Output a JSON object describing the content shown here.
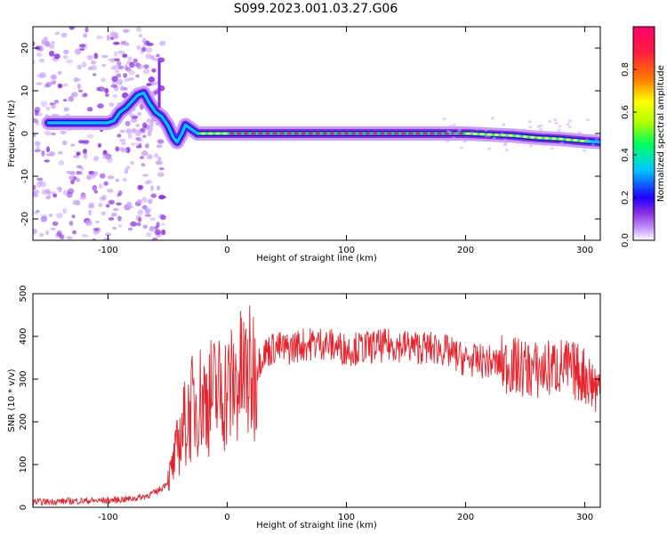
{
  "title": "S099.2023.001.03.27.G06",
  "colors": {
    "snr_line": "#e8232b",
    "axis": "#000000",
    "colormap": [
      "#ffffff",
      "#8a2be2",
      "#1e00ff",
      "#00c8ff",
      "#00ff60",
      "#b0ff00",
      "#ffff00",
      "#ff8000",
      "#ff1e3c",
      "#ff006e"
    ]
  },
  "chart_data": [
    {
      "type": "heatmap",
      "xlabel": "Height of straight line (km)",
      "ylabel": "Frequency (Hz)",
      "xlim": [
        -163,
        313
      ],
      "ylim": [
        -25,
        25
      ],
      "x_ticks": [
        -100,
        0,
        100,
        200,
        300
      ],
      "y_ticks": [
        -20,
        -10,
        0,
        10,
        20
      ],
      "colorbar": {
        "label": "Normalized spectral amplitude",
        "range": [
          0,
          1
        ],
        "ticks": [
          "0.0",
          "0.2",
          "0.4",
          "0.6",
          "0.8"
        ]
      },
      "ridge": {
        "x": [
          -150,
          -130,
          -110,
          -100,
          -95,
          -90,
          -85,
          -80,
          -75,
          -70,
          -65,
          -60,
          -55,
          -50,
          -45,
          -42,
          -38,
          -35,
          -30,
          -25,
          -20,
          -10,
          0,
          50,
          100,
          150,
          200,
          240,
          260,
          280,
          300,
          312
        ],
        "frequency": [
          2.5,
          2.5,
          2.5,
          2.5,
          3,
          5,
          6,
          7.5,
          9,
          9.5,
          7,
          5,
          4,
          2,
          -1,
          -2,
          0,
          2,
          1,
          0,
          0,
          0,
          0,
          0,
          0,
          0,
          0,
          -0.5,
          -1,
          -1.3,
          -1.8,
          -2
        ]
      }
    },
    {
      "type": "line",
      "xlabel": "Height of straight line (km)",
      "ylabel": "SNR (10 * v/v)",
      "xlim": [
        -163,
        313
      ],
      "ylim": [
        0,
        500
      ],
      "x_ticks": [
        -100,
        0,
        100,
        200,
        300
      ],
      "y_ticks": [
        0,
        100,
        200,
        300,
        400,
        500
      ],
      "series": [
        {
          "x": [
            -163,
            -140,
            -120,
            -100,
            -80,
            -70,
            -60,
            -55,
            -50,
            -45,
            -40,
            -35,
            -30,
            -25,
            -20,
            -15,
            -10,
            -5,
            0,
            5,
            10,
            15,
            20,
            25,
            30,
            40,
            50,
            60,
            80,
            100,
            120,
            140,
            160,
            180,
            200,
            220,
            240,
            260,
            280,
            300,
            313
          ],
          "snr": [
            12,
            14,
            15,
            16,
            20,
            25,
            35,
            45,
            60,
            100,
            160,
            200,
            230,
            250,
            255,
            260,
            265,
            270,
            275,
            285,
            300,
            310,
            305,
            330,
            360,
            375,
            370,
            380,
            385,
            370,
            375,
            380,
            375,
            370,
            345,
            340,
            330,
            320,
            330,
            310,
            270
          ]
        }
      ]
    }
  ]
}
